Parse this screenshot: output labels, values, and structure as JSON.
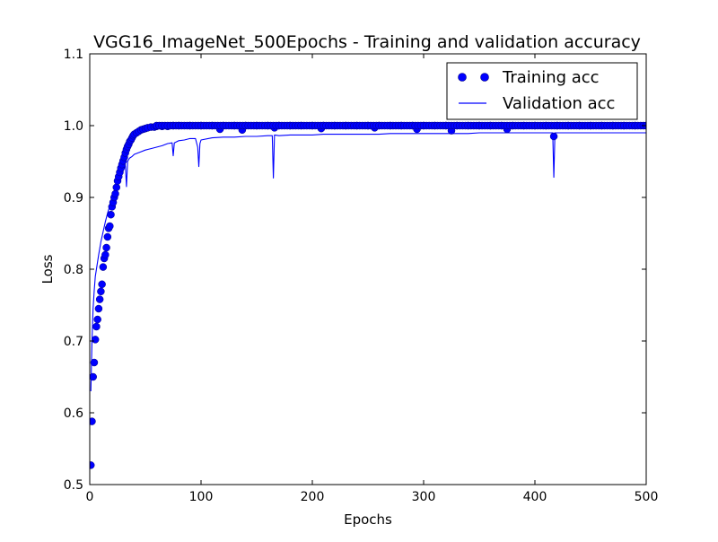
{
  "chart_data": {
    "type": "line",
    "title": "VGG16_ImageNet_500Epochs - Training and validation accuracy",
    "xlabel": "Epochs",
    "ylabel": "Loss",
    "xlim": [
      0,
      500
    ],
    "ylim": [
      0.5,
      1.1
    ],
    "xticks": [
      "0",
      "100",
      "200",
      "300",
      "400",
      "500"
    ],
    "yticks": [
      "0.5",
      "0.6",
      "0.7",
      "0.8",
      "0.9",
      "1.0",
      "1.1"
    ],
    "xtick_values": [
      0,
      100,
      200,
      300,
      400,
      500
    ],
    "ytick_values": [
      0.5,
      0.6,
      0.7,
      0.8,
      0.9,
      1.0,
      1.1
    ],
    "grid": false,
    "legend_position": "top-right",
    "series": [
      {
        "name": "Training acc",
        "style": "markers",
        "color": "#0000ff",
        "x": [
          1,
          2,
          3,
          4,
          5,
          6,
          7,
          8,
          9,
          10,
          11,
          12,
          13,
          14,
          15,
          16,
          17,
          18,
          19,
          20,
          21,
          22,
          23,
          24,
          25,
          26,
          27,
          28,
          29,
          30,
          31,
          32,
          33,
          34,
          35,
          36,
          37,
          38,
          39,
          40,
          42,
          44,
          46,
          48,
          50,
          52,
          55,
          58,
          60,
          65,
          70,
          75,
          80,
          90,
          100,
          110,
          117,
          120,
          130,
          137,
          140,
          150,
          160,
          166,
          170,
          180,
          190,
          200,
          208,
          210,
          220,
          230,
          240,
          250,
          256,
          260,
          270,
          280,
          290,
          294,
          300,
          310,
          320,
          325,
          330,
          340,
          350,
          360,
          370,
          375,
          380,
          390,
          400,
          410,
          417,
          420,
          430,
          440,
          450,
          460,
          470,
          480,
          490,
          500
        ],
        "y": [
          0.527,
          0.588,
          0.65,
          0.67,
          0.702,
          0.72,
          0.73,
          0.745,
          0.758,
          0.769,
          0.779,
          0.803,
          0.815,
          0.82,
          0.83,
          0.845,
          0.857,
          0.86,
          0.876,
          0.887,
          0.893,
          0.9,
          0.905,
          0.914,
          0.923,
          0.929,
          0.935,
          0.941,
          0.946,
          0.951,
          0.956,
          0.962,
          0.967,
          0.971,
          0.974,
          0.978,
          0.98,
          0.983,
          0.986,
          0.988,
          0.99,
          0.992,
          0.994,
          0.995,
          0.996,
          0.997,
          0.998,
          0.998,
          0.999,
          0.999,
          0.999,
          1.0,
          1.0,
          1.0,
          1.0,
          1.0,
          0.995,
          1.0,
          1.0,
          0.994,
          1.0,
          1.0,
          1.0,
          0.997,
          1.0,
          1.0,
          1.0,
          1.0,
          0.996,
          1.0,
          1.0,
          1.0,
          1.0,
          1.0,
          0.997,
          1.0,
          1.0,
          1.0,
          1.0,
          0.995,
          1.0,
          1.0,
          1.0,
          0.993,
          1.0,
          1.0,
          1.0,
          1.0,
          1.0,
          0.995,
          1.0,
          1.0,
          1.0,
          1.0,
          0.985,
          1.0,
          1.0,
          1.0,
          1.0,
          1.0,
          1.0,
          1.0,
          1.0,
          1.0
        ]
      },
      {
        "name": "Validation acc",
        "style": "line",
        "color": "#0000ff",
        "x": [
          1,
          2,
          3,
          4,
          5,
          6,
          8,
          10,
          12,
          14,
          16,
          18,
          20,
          22,
          24,
          26,
          28,
          30,
          32,
          33,
          34,
          35,
          36,
          38,
          40,
          45,
          50,
          55,
          60,
          65,
          70,
          74,
          75,
          76,
          80,
          85,
          90,
          95,
          97,
          98,
          99,
          100,
          110,
          120,
          130,
          140,
          150,
          160,
          164,
          165,
          166,
          170,
          180,
          190,
          200,
          210,
          220,
          230,
          240,
          250,
          260,
          270,
          280,
          290,
          300,
          310,
          320,
          330,
          340,
          350,
          360,
          370,
          380,
          390,
          400,
          410,
          416,
          417,
          418,
          419,
          420,
          430,
          440,
          450,
          460,
          470,
          480,
          490,
          500
        ],
        "y": [
          0.63,
          0.7,
          0.745,
          0.77,
          0.79,
          0.8,
          0.82,
          0.838,
          0.852,
          0.866,
          0.878,
          0.888,
          0.896,
          0.903,
          0.912,
          0.921,
          0.929,
          0.937,
          0.944,
          0.915,
          0.95,
          0.953,
          0.955,
          0.957,
          0.96,
          0.963,
          0.966,
          0.968,
          0.97,
          0.972,
          0.975,
          0.976,
          0.958,
          0.976,
          0.979,
          0.98,
          0.982,
          0.982,
          0.97,
          0.943,
          0.975,
          0.98,
          0.983,
          0.984,
          0.984,
          0.985,
          0.985,
          0.986,
          0.986,
          0.927,
          0.987,
          0.986,
          0.987,
          0.987,
          0.987,
          0.988,
          0.988,
          0.988,
          0.988,
          0.988,
          0.988,
          0.989,
          0.989,
          0.989,
          0.989,
          0.989,
          0.989,
          0.989,
          0.989,
          0.99,
          0.99,
          0.99,
          0.99,
          0.99,
          0.99,
          0.99,
          0.99,
          0.928,
          0.99,
          0.99,
          0.99,
          0.99,
          0.99,
          0.99,
          0.99,
          0.99,
          0.99,
          0.99,
          0.99
        ]
      }
    ]
  }
}
